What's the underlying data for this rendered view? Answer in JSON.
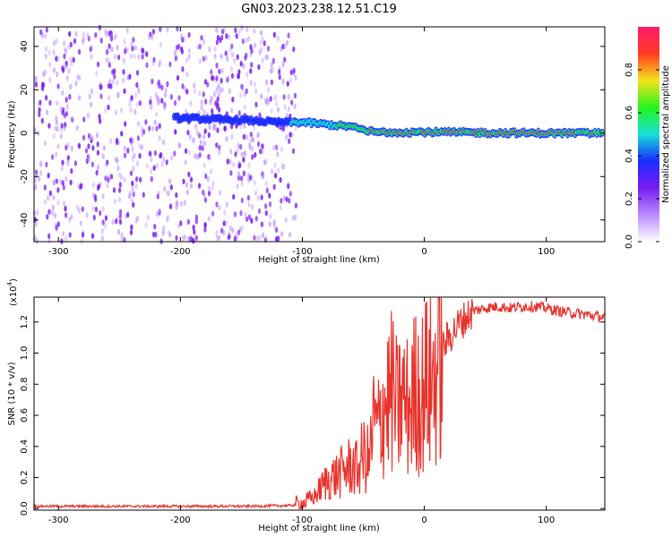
{
  "title": "GN03.2023.238.12.51.C19",
  "colors": {
    "snr_line": "#e8332c",
    "spectrogram_noise": "#7a1cf0",
    "ridge_low": "#1a2cff",
    "ridge_mid": "#16e0d8",
    "ridge_high": "#25f51a",
    "ridge_peak": "#ff3a22"
  },
  "chart_data": [
    {
      "type": "heatmap",
      "xlabel": "Height of straight line (km)",
      "ylabel": "Frequency (Hz)",
      "xlim": [
        -320,
        148
      ],
      "ylim": [
        -50,
        49
      ],
      "xticks": [
        -300,
        -200,
        -100,
        0,
        100
      ],
      "yticks": [
        -40,
        -20,
        0,
        20,
        40
      ],
      "colorbar": {
        "label": "Normalized spectral amplitude",
        "range": [
          0.0,
          1.0
        ],
        "ticks": [
          "0.0",
          "0.2",
          "0.4",
          "0.6",
          "0.8"
        ],
        "colormap": [
          "#ffffff",
          "#b98cff",
          "#7a1cf0",
          "#1a2cff",
          "#16e0d8",
          "#25f51a",
          "#f5e31a",
          "#ff3a22",
          "#ff1a6e"
        ]
      },
      "noise_region_x": [
        -320,
        -105
      ],
      "ridge": {
        "x": [
          -200,
          -150,
          -120,
          -100,
          -80,
          -60,
          -50,
          -40,
          0,
          50,
          100,
          148
        ],
        "frequency": [
          7,
          6,
          5,
          5,
          4,
          3,
          1.5,
          0.5,
          0.5,
          0.2,
          0,
          0
        ],
        "amplitude": [
          0.3,
          0.4,
          0.45,
          0.55,
          0.6,
          0.65,
          0.75,
          0.85,
          0.9,
          0.9,
          0.95,
          0.95
        ]
      }
    },
    {
      "type": "line",
      "xlabel": "Height of straight line (km)",
      "ylabel": "SNR (10 * v/v)",
      "multiplier_label": "(x10",
      "multiplier_exp": "4",
      "xlim": [
        -320,
        148
      ],
      "ylim": [
        -0.01,
        1.36
      ],
      "xticks": [
        -300,
        -200,
        -100,
        0,
        100
      ],
      "yticks": [
        "0.0",
        "0.2",
        "0.4",
        "0.6",
        "0.8",
        "1.0",
        "1.2"
      ],
      "series": [
        {
          "x": [
            -320,
            -200,
            -140,
            -110,
            -100,
            -90,
            -80,
            -70,
            -60,
            -55,
            -50,
            -45,
            -42,
            -38,
            -34,
            -30,
            -26,
            -22,
            -18,
            -14,
            -10,
            -6,
            -2,
            0,
            4,
            8,
            12,
            16,
            20,
            25,
            30,
            40,
            50,
            60,
            70,
            80,
            90,
            100,
            110,
            120,
            130,
            140,
            148
          ],
          "values": [
            0.015,
            0.015,
            0.015,
            0.02,
            0.03,
            0.08,
            0.18,
            0.22,
            0.28,
            0.25,
            0.35,
            0.3,
            0.55,
            0.5,
            0.65,
            0.7,
            0.75,
            0.62,
            0.72,
            0.65,
            0.7,
            0.78,
            0.72,
            0.82,
            0.78,
            0.85,
            0.98,
            1.05,
            1.1,
            1.15,
            1.2,
            1.27,
            1.29,
            1.3,
            1.29,
            1.3,
            1.3,
            1.29,
            1.27,
            1.26,
            1.25,
            1.24,
            1.23
          ]
        }
      ]
    }
  ]
}
